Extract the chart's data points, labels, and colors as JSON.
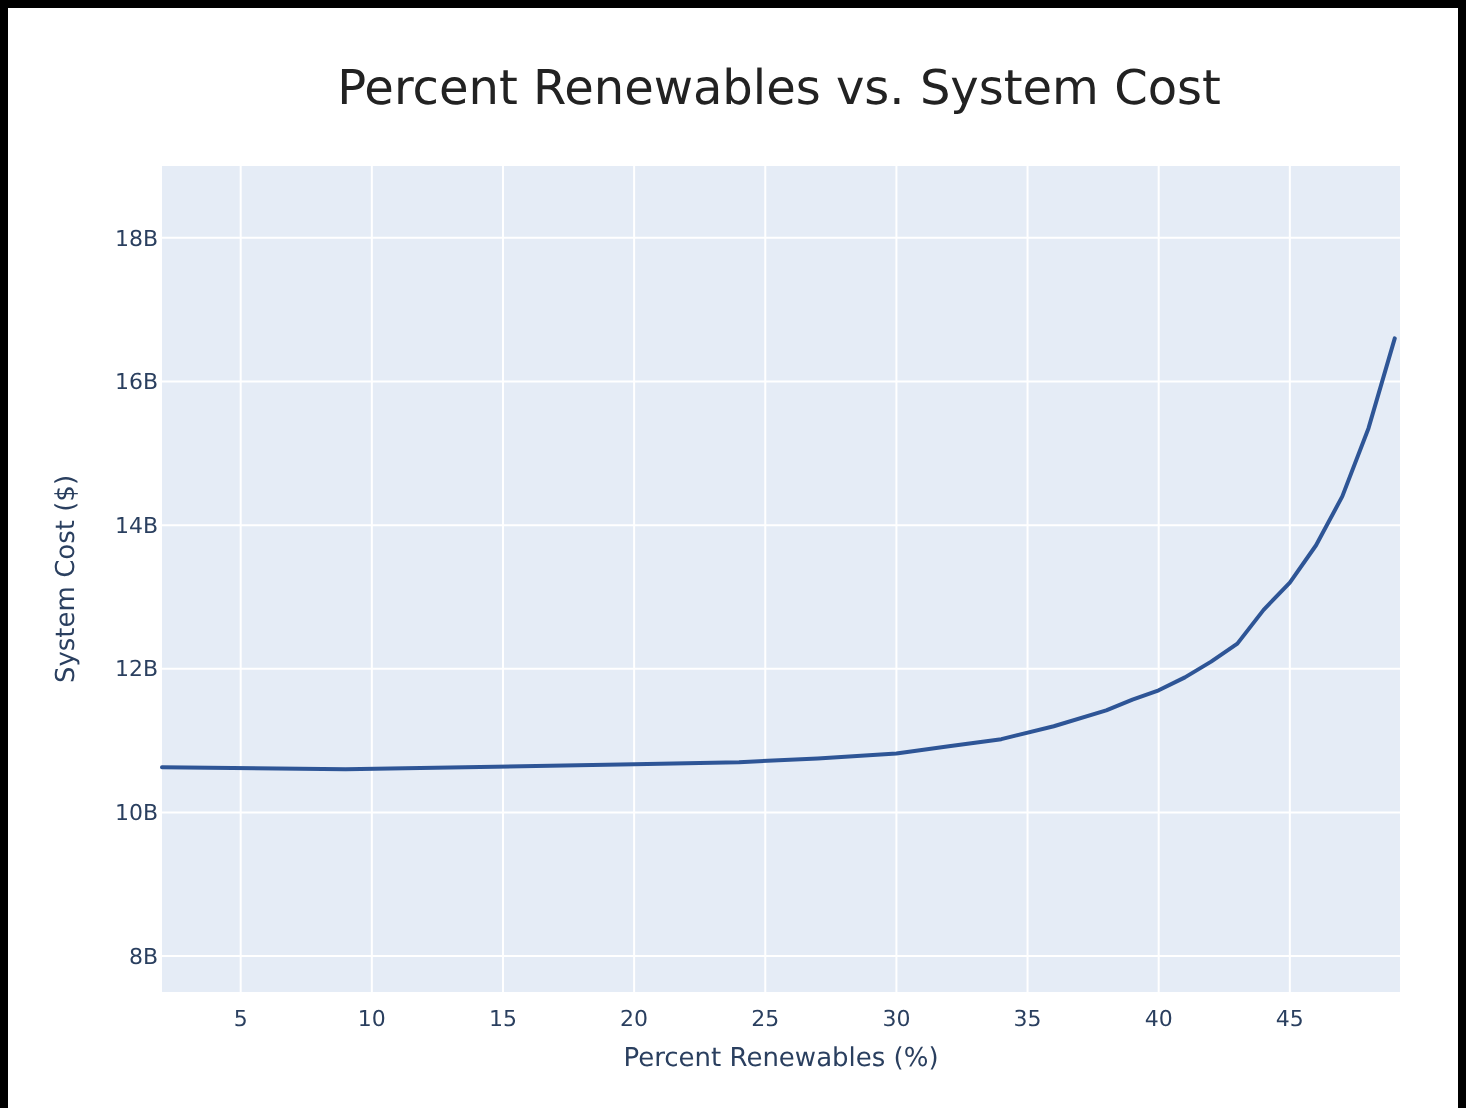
{
  "chart_data": {
    "type": "line",
    "title": "Percent Renewables vs. System Cost",
    "xlabel": "Percent Renewables (%)",
    "ylabel": "System Cost ($)",
    "x": [
      2,
      9,
      20,
      24,
      27,
      30,
      32,
      34,
      36,
      38,
      39,
      40,
      41,
      42,
      43,
      44,
      45,
      46,
      47,
      48,
      49
    ],
    "series": [
      {
        "color": "#2e5596",
        "values": [
          10630000000,
          10600000000,
          10670000000,
          10700000000,
          10750000000,
          10820000000,
          10920000000,
          11020000000,
          11200000000,
          11420000000,
          11570000000,
          11700000000,
          11880000000,
          12100000000,
          12350000000,
          12820000000,
          13200000000,
          13720000000,
          14400000000,
          15350000000,
          16600000000
        ]
      }
    ],
    "xlim": [
      2,
      49.2
    ],
    "xticks": [
      5,
      10,
      15,
      20,
      25,
      30,
      35,
      40,
      45
    ],
    "ylim": [
      7500000000,
      19000000000
    ],
    "yticks": [
      {
        "value": 8000000000,
        "label": "8B"
      },
      {
        "value": 10000000000,
        "label": "10B"
      },
      {
        "value": 12000000000,
        "label": "12B"
      },
      {
        "value": 14000000000,
        "label": "14B"
      },
      {
        "value": 16000000000,
        "label": "16B"
      },
      {
        "value": 18000000000,
        "label": "18B"
      }
    ],
    "grid": true,
    "marker": "none",
    "line_style": "solid"
  }
}
